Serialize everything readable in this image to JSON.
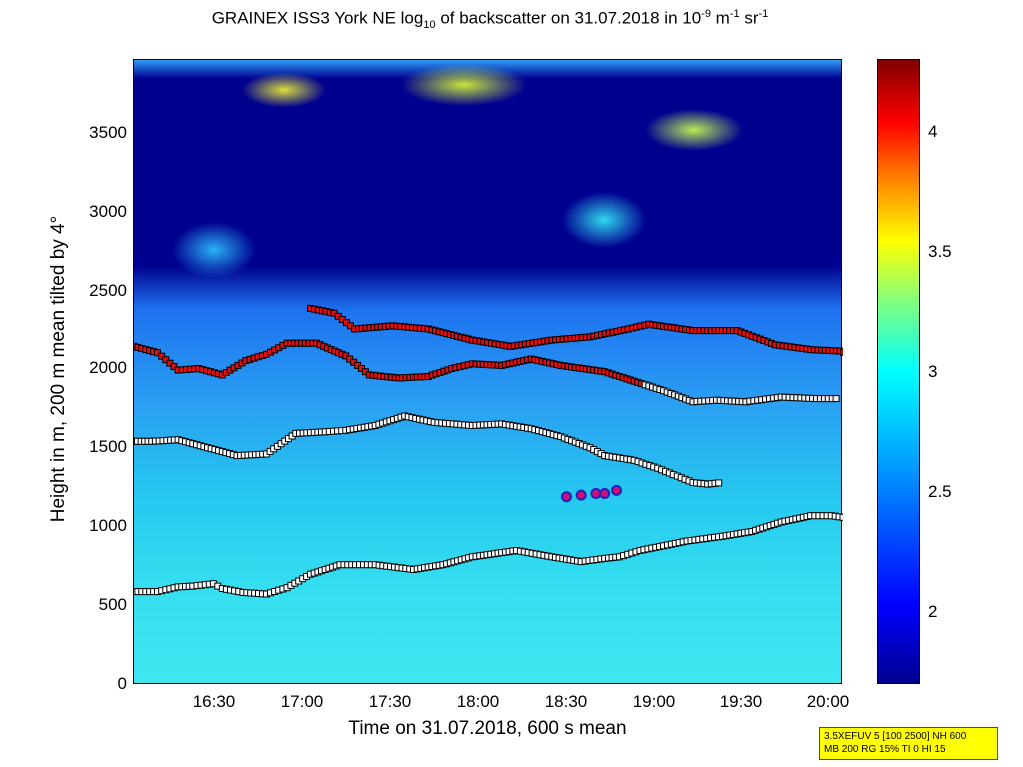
{
  "chart_data": {
    "type": "heatmap",
    "title": "GRAINEX ISS3 York NE log10 of backscatter on 31.07.2018 in 10-9 m-1 sr-1",
    "title_parts": {
      "prefix": "GRAINEX ISS3 York NE log",
      "sub": "10",
      "middle": " of backscatter on 31.07.2018 in 10",
      "exp1": "-9",
      "unit1": " m",
      "exp2": "-1",
      "unit2": " sr",
      "exp3": "-1"
    },
    "xlabel": "Time on 31.07.2018, 600 s mean",
    "ylabel": "Height in m, 200 m mean tilted by 4°",
    "x_range": [
      "16:02",
      "20:03"
    ],
    "ylim": [
      0,
      3950
    ],
    "x_ticks": [
      "16:30",
      "17:00",
      "17:30",
      "18:00",
      "18:30",
      "19:00",
      "19:30",
      "20:00"
    ],
    "y_ticks": [
      "0",
      "500",
      "1000",
      "1500",
      "2000",
      "2500",
      "3000",
      "3500"
    ],
    "colorbar": {
      "colormap": "jet",
      "range": [
        1.7,
        4.3
      ],
      "ticks": [
        "2",
        "2.5",
        "3",
        "3.5",
        "4"
      ]
    },
    "layers": [
      {
        "name": "lowest layer",
        "points": [
          [
            0,
            590
          ],
          [
            8,
            590
          ],
          [
            15,
            620
          ],
          [
            20,
            625
          ],
          [
            27,
            640
          ],
          [
            30,
            610
          ],
          [
            37,
            585
          ],
          [
            45,
            575
          ],
          [
            52,
            615
          ],
          [
            60,
            700
          ],
          [
            70,
            760
          ],
          [
            82,
            760
          ],
          [
            95,
            730
          ],
          [
            105,
            760
          ],
          [
            115,
            810
          ],
          [
            130,
            850
          ],
          [
            142,
            810
          ],
          [
            152,
            780
          ],
          [
            160,
            800
          ],
          [
            165,
            810
          ],
          [
            172,
            850
          ],
          [
            180,
            880
          ],
          [
            188,
            910
          ],
          [
            200,
            940
          ],
          [
            210,
            970
          ],
          [
            220,
            1030
          ],
          [
            230,
            1070
          ],
          [
            237,
            1070
          ],
          [
            245,
            1050
          ],
          [
            255,
            1050
          ],
          [
            262,
            1040
          ],
          [
            270,
            1040
          ],
          [
            280,
            1060
          ],
          [
            300,
            1060
          ],
          [
            308,
            1090
          ],
          [
            315,
            1080
          ],
          [
            325,
            1140
          ],
          [
            332,
            1150
          ],
          [
            342,
            1110
          ],
          [
            350,
            1120
          ],
          [
            360,
            1140
          ],
          [
            370,
            1140
          ],
          [
            380,
            1140
          ],
          [
            392,
            1110
          ],
          [
            400,
            1110
          ],
          [
            410,
            1120
          ],
          [
            420,
            1110
          ],
          [
            430,
            1100
          ],
          [
            440,
            1060
          ]
        ]
      },
      {
        "name": "mid layer",
        "points": [
          [
            0,
            1540
          ],
          [
            6,
            1540
          ],
          [
            15,
            1550
          ],
          [
            25,
            1500
          ],
          [
            35,
            1450
          ],
          [
            45,
            1460
          ],
          [
            55,
            1590
          ],
          [
            65,
            1600
          ],
          [
            72,
            1610
          ],
          [
            82,
            1640
          ],
          [
            92,
            1700
          ],
          [
            102,
            1660
          ],
          [
            115,
            1640
          ],
          [
            125,
            1650
          ],
          [
            135,
            1620
          ],
          [
            145,
            1570
          ],
          [
            155,
            1500
          ],
          [
            160,
            1450
          ],
          [
            170,
            1420
          ],
          [
            178,
            1370
          ],
          [
            190,
            1280
          ],
          [
            195,
            1270
          ],
          [
            200,
            1280
          ]
        ]
      },
      {
        "name": "upper layer",
        "points": [
          [
            0,
            2140
          ],
          [
            8,
            2100
          ],
          [
            15,
            1990
          ],
          [
            22,
            2000
          ],
          [
            30,
            1960
          ],
          [
            38,
            2050
          ],
          [
            45,
            2090
          ],
          [
            52,
            2160
          ],
          [
            62,
            2160
          ],
          [
            72,
            2080
          ],
          [
            80,
            1960
          ],
          [
            90,
            1940
          ],
          [
            100,
            1950
          ],
          [
            108,
            2000
          ],
          [
            115,
            2030
          ],
          [
            125,
            2020
          ],
          [
            135,
            2060
          ],
          [
            145,
            2020
          ],
          [
            160,
            1980
          ],
          [
            170,
            1920
          ],
          [
            180,
            1860
          ],
          [
            190,
            1790
          ],
          [
            198,
            1800
          ],
          [
            208,
            1790
          ],
          [
            220,
            1820
          ],
          [
            232,
            1810
          ],
          [
            240,
            1810
          ]
        ]
      },
      {
        "name": "top layer",
        "points": [
          [
            60,
            2380
          ],
          [
            68,
            2350
          ],
          [
            75,
            2250
          ],
          [
            88,
            2270
          ],
          [
            100,
            2250
          ],
          [
            115,
            2180
          ],
          [
            128,
            2140
          ],
          [
            142,
            2180
          ],
          [
            155,
            2200
          ],
          [
            168,
            2250
          ],
          [
            175,
            2280
          ],
          [
            190,
            2240
          ],
          [
            205,
            2240
          ],
          [
            218,
            2150
          ],
          [
            230,
            2120
          ],
          [
            240,
            2110
          ],
          [
            250,
            2050
          ],
          [
            262,
            2060
          ],
          [
            272,
            2100
          ],
          [
            282,
            2180
          ],
          [
            290,
            2220
          ],
          [
            300,
            2270
          ],
          [
            312,
            2240
          ],
          [
            325,
            2130
          ],
          [
            336,
            2100
          ],
          [
            350,
            2060
          ],
          [
            362,
            2120
          ],
          [
            375,
            2110
          ],
          [
            388,
            2110
          ],
          [
            400,
            2030
          ],
          [
            412,
            2050
          ]
        ]
      }
    ],
    "markers": [
      [
        147,
        1190
      ],
      [
        152,
        1200
      ],
      [
        157,
        1210
      ],
      [
        160,
        1210
      ],
      [
        164,
        1230
      ]
    ],
    "info_box": [
      "3.5XEFUV 5 [100 2500] NH 600",
      "MB 200 RG 15% TI 0 HI 15"
    ]
  }
}
